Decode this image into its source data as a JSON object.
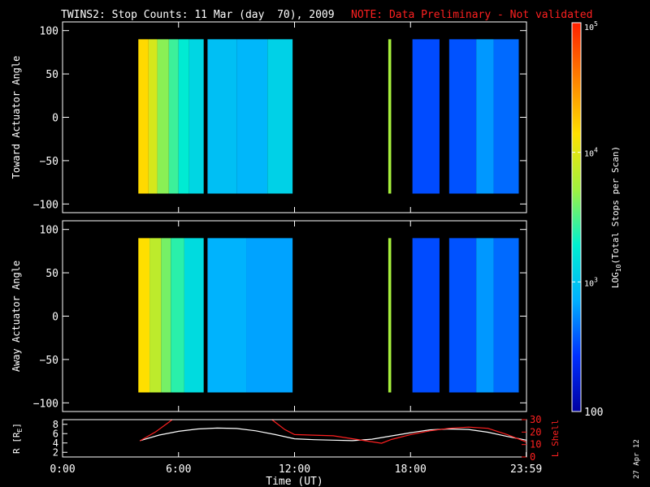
{
  "title": {
    "main": "TWINS2: Stop Counts: 11 Mar (day  70), 2009",
    "note": "NOTE: Data Preliminary - Not validated",
    "note_color": "#ff2020"
  },
  "datestamp": "27 Apr 12",
  "chart_data": [
    {
      "type": "heatmap",
      "name": "toward",
      "ylabel": "Toward Actuator Angle",
      "xlim": [
        0,
        24
      ],
      "ylim": [
        -110,
        110
      ],
      "yticks": [
        -100,
        -50,
        0,
        50,
        100
      ],
      "ytick_labels": [
        "−100",
        "−50",
        "0",
        "50",
        "100"
      ],
      "angle_range": [
        -88,
        90
      ],
      "blocks": [
        {
          "t0": 3.92,
          "t1": 4.45,
          "value": 15000
        },
        {
          "t0": 4.45,
          "t1": 4.9,
          "value": 9000
        },
        {
          "t0": 4.9,
          "t1": 5.5,
          "value": 4500
        },
        {
          "t0": 5.5,
          "t1": 6.0,
          "value": 2800
        },
        {
          "t0": 6.0,
          "t1": 6.55,
          "value": 1800
        },
        {
          "t0": 6.55,
          "t1": 7.3,
          "value": 1300
        },
        {
          "t0": 7.5,
          "t1": 9.0,
          "value": 900
        },
        {
          "t0": 9.0,
          "t1": 10.6,
          "value": 800
        },
        {
          "t0": 10.6,
          "t1": 11.9,
          "value": 1200
        },
        {
          "t0": 16.85,
          "t1": 17.0,
          "value": 5500
        },
        {
          "t0": 18.1,
          "t1": 19.5,
          "value": 330
        },
        {
          "t0": 20.0,
          "t1": 21.4,
          "value": 350
        },
        {
          "t0": 21.4,
          "t1": 22.3,
          "value": 600
        },
        {
          "t0": 22.3,
          "t1": 23.6,
          "value": 420
        }
      ]
    },
    {
      "type": "heatmap",
      "name": "away",
      "ylabel": "Away Actuator Angle",
      "xlim": [
        0,
        24
      ],
      "ylim": [
        -110,
        110
      ],
      "yticks": [
        -100,
        -50,
        0,
        50,
        100
      ],
      "ytick_labels": [
        "−100",
        "−50",
        "0",
        "50",
        "100"
      ],
      "angle_range": [
        -88,
        90
      ],
      "blocks": [
        {
          "t0": 3.92,
          "t1": 4.5,
          "value": 14000
        },
        {
          "t0": 4.5,
          "t1": 5.1,
          "value": 7000
        },
        {
          "t0": 5.1,
          "t1": 5.6,
          "value": 4000
        },
        {
          "t0": 5.6,
          "t1": 6.3,
          "value": 2500
        },
        {
          "t0": 6.3,
          "t1": 7.3,
          "value": 1400
        },
        {
          "t0": 7.5,
          "t1": 9.5,
          "value": 750
        },
        {
          "t0": 9.5,
          "t1": 11.9,
          "value": 650
        },
        {
          "t0": 16.85,
          "t1": 17.0,
          "value": 5500
        },
        {
          "t0": 18.1,
          "t1": 19.5,
          "value": 330
        },
        {
          "t0": 20.0,
          "t1": 21.4,
          "value": 350
        },
        {
          "t0": 21.4,
          "t1": 22.3,
          "value": 600
        },
        {
          "t0": 22.3,
          "t1": 23.6,
          "value": 420
        }
      ]
    },
    {
      "type": "line",
      "name": "orbit",
      "ylabel": "R [R",
      "ylabel_sub": "E",
      "ylabel_tail": "]",
      "ylabel_right": "L Shell",
      "xlabel": "Time (UT)",
      "xlim": [
        0,
        24
      ],
      "xticks": [
        0,
        6,
        12,
        18,
        23.983
      ],
      "xtick_labels": [
        "0:00",
        "6:00",
        "12:00",
        "18:00",
        "23:59"
      ],
      "ylim": [
        1,
        9
      ],
      "yticks": [
        2,
        4,
        6,
        8
      ],
      "ytick_labels": [
        "2",
        "4",
        "6",
        "8"
      ],
      "y2lim": [
        0,
        30
      ],
      "y2ticks": [
        0,
        10,
        20,
        30
      ],
      "y2tick_labels": [
        "0",
        "10",
        "20",
        "30"
      ],
      "series": [
        {
          "color": "#ffffff",
          "axis": "left",
          "x": [
            4,
            5,
            6,
            7,
            8,
            9,
            10,
            11,
            12,
            13,
            14,
            15,
            16,
            17,
            18,
            19,
            20,
            21,
            22,
            23,
            24
          ],
          "y": [
            4.5,
            5.7,
            6.5,
            7.0,
            7.2,
            7.1,
            6.6,
            5.8,
            4.9,
            4.7,
            4.6,
            4.5,
            4.8,
            5.5,
            6.2,
            6.8,
            7.0,
            6.9,
            6.3,
            5.4,
            4.6
          ]
        },
        {
          "color": "#ff2020",
          "axis": "right",
          "x": [
            4,
            4.8,
            5.5,
            6,
            10.5,
            11,
            11.5,
            12,
            14,
            16.5,
            17,
            18,
            19,
            20,
            21,
            22,
            23,
            24
          ],
          "y": [
            13,
            20,
            28,
            34,
            34,
            28,
            22,
            18,
            17,
            11,
            14,
            18,
            21,
            23,
            24,
            23,
            18,
            12
          ]
        }
      ]
    }
  ],
  "colorbar": {
    "ylabel": "LOG",
    "ylabel_sub": "10",
    "ylabel_tail": "(Total Stops per Scan)",
    "range": [
      100,
      100000
    ],
    "ticks": [
      {
        "value": 100000,
        "base": "10",
        "exp": "5"
      },
      {
        "value": 10000,
        "base": "10",
        "exp": "4"
      },
      {
        "value": 1000,
        "base": "10",
        "exp": "3"
      },
      {
        "value": 100,
        "base": "100",
        "exp": ""
      }
    ],
    "colors": [
      "#0000a0",
      "#0030ff",
      "#00b0ff",
      "#00f0d0",
      "#a0f040",
      "#ffe000",
      "#ff8000",
      "#ff2000"
    ]
  }
}
